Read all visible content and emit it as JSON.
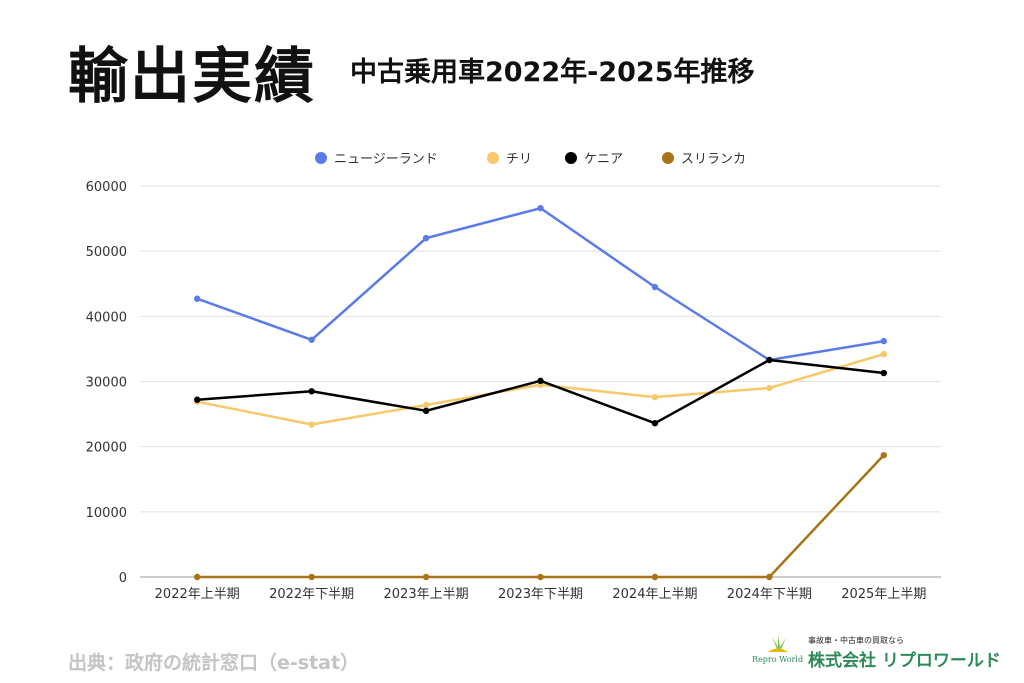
{
  "header": {
    "title": "輸出実績",
    "subtitle": "中古乗用車2022年-2025年推移"
  },
  "footer": {
    "source": "出典：政府の統計窓口（e-stat）"
  },
  "logo": {
    "tagline": "事故車・中古車の買取なら",
    "company": "株式会社 リプロワールド",
    "brand": "Repro World"
  },
  "chart_data": {
    "type": "line",
    "title": "輸出実績 中古乗用車2022年-2025年推移",
    "xlabel": "",
    "ylabel": "",
    "categories": [
      "2022年上半期",
      "2022年下半期",
      "2023年上半期",
      "2023年下半期",
      "2024年上半期",
      "2024年下半期",
      "2025年上半期"
    ],
    "ylim": [
      0,
      60000
    ],
    "yticks": [
      0,
      10000,
      20000,
      30000,
      40000,
      50000,
      60000
    ],
    "grid": true,
    "legend": "top-center",
    "series": [
      {
        "name": "ニュージーランド",
        "color": "#5b7be8",
        "values": [
          42700,
          36400,
          52000,
          56600,
          44500,
          33300,
          36200
        ]
      },
      {
        "name": "チリ",
        "color": "#f7c96a",
        "values": [
          26900,
          23400,
          26400,
          29500,
          27600,
          29000,
          34200
        ]
      },
      {
        "name": "ケニア",
        "color": "#000000",
        "values": [
          27200,
          28500,
          25500,
          30100,
          23600,
          33300,
          31300
        ]
      },
      {
        "name": "スリランカ",
        "color": "#a87417",
        "values": [
          0,
          0,
          0,
          0,
          0,
          0,
          18700
        ]
      }
    ]
  }
}
